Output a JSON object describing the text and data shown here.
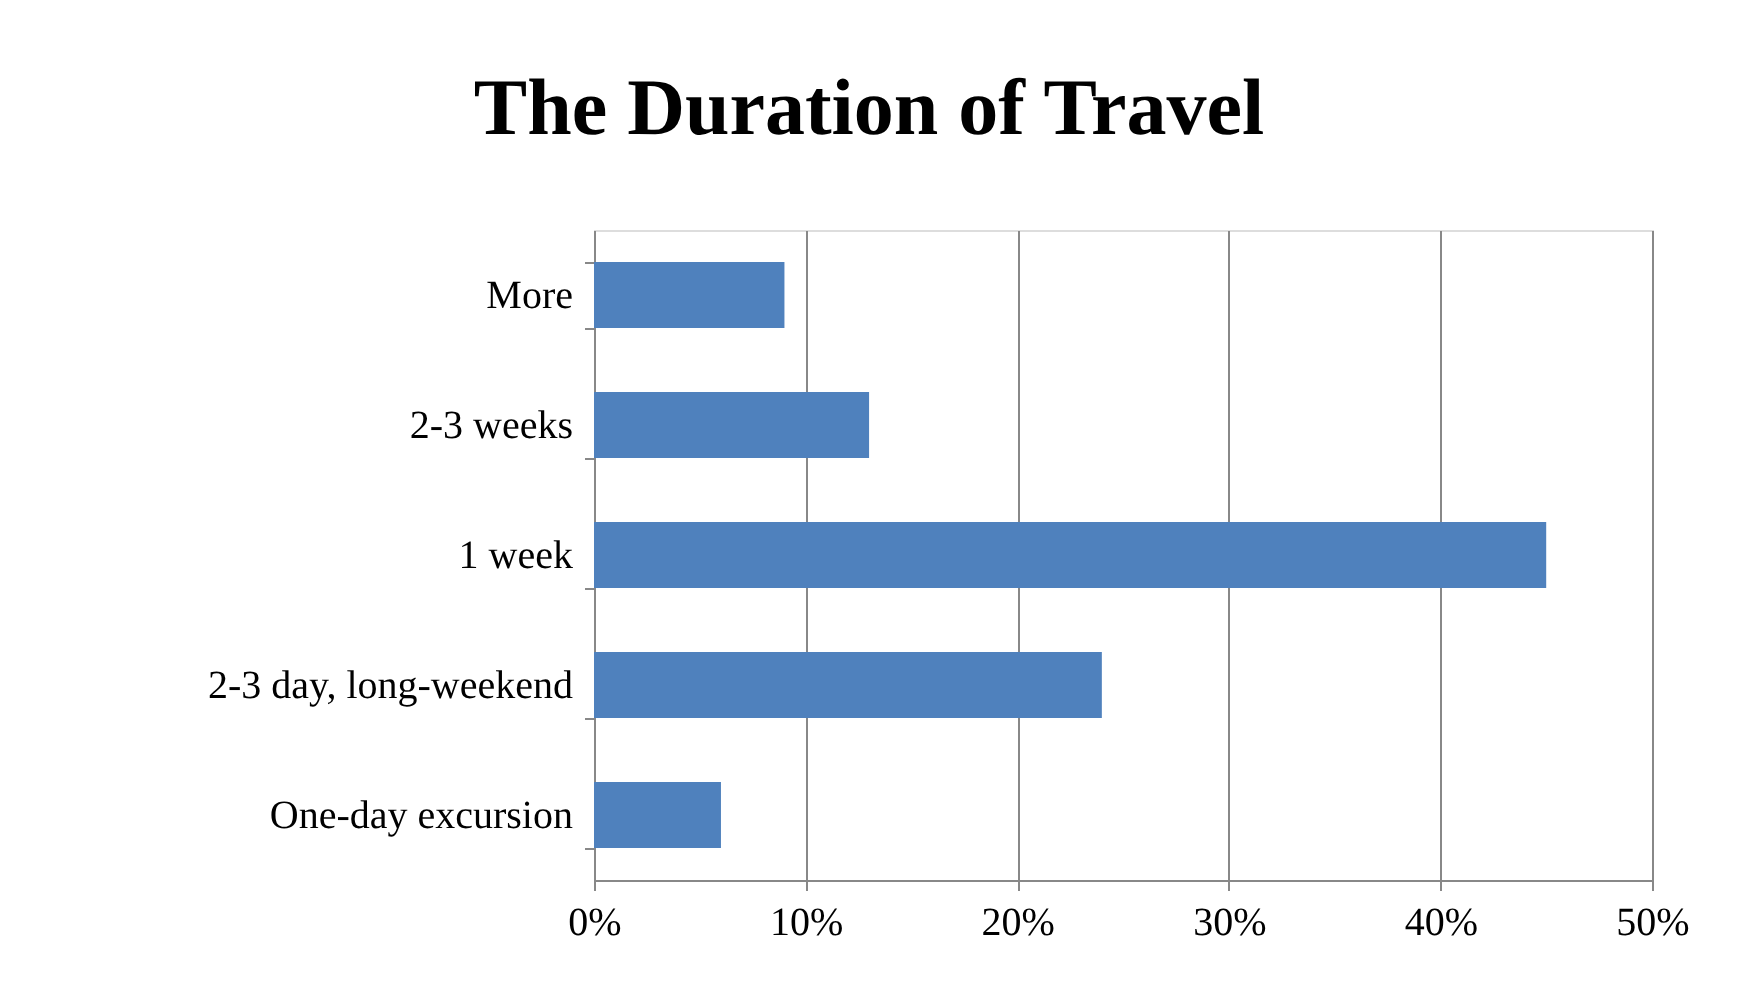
{
  "chart_data": {
    "type": "bar",
    "orientation": "horizontal",
    "title": "The Duration of Travel",
    "categories": [
      "More",
      "2-3 weeks",
      "1 week",
      "2-3 day, long-weekend",
      "One-day excursion"
    ],
    "values": [
      9,
      13,
      45,
      24,
      6
    ],
    "color": "#4f81bd",
    "xlim": [
      0,
      50
    ],
    "xticks": [
      {
        "value": 0,
        "label": "0%"
      },
      {
        "value": 10,
        "label": "10%"
      },
      {
        "value": 20,
        "label": "20%"
      },
      {
        "value": 30,
        "label": "30%"
      },
      {
        "value": 40,
        "label": "40%"
      },
      {
        "value": 50,
        "label": "50%"
      }
    ],
    "grid": "x"
  }
}
